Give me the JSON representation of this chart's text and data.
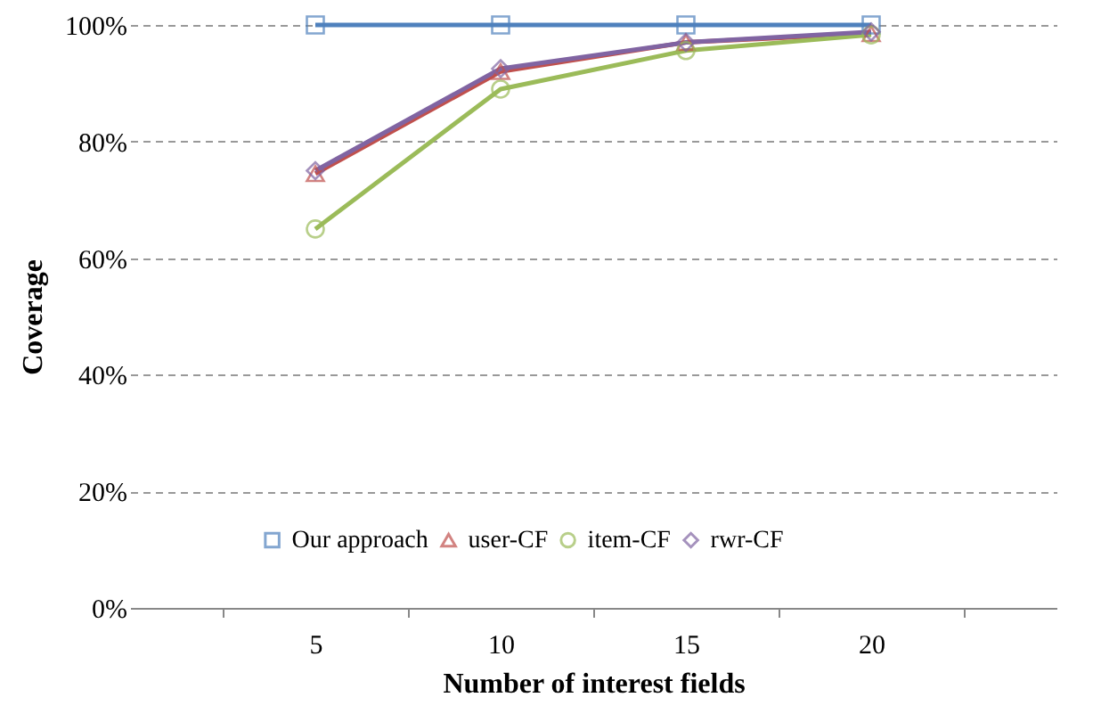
{
  "chart_data": {
    "type": "line",
    "xlabel": "Number of  interest fields",
    "ylabel": "Coverage",
    "categories": [
      "5",
      "10",
      "15",
      "20"
    ],
    "series": [
      {
        "name": "Our approach",
        "color": "#4f81bd",
        "marker": "square",
        "values": [
          100,
          100,
          100,
          100
        ]
      },
      {
        "name": "user-CF",
        "color": "#c0504d",
        "marker": "triangle",
        "values": [
          74.5,
          92,
          97,
          98.5
        ]
      },
      {
        "name": "item-CF",
        "color": "#9bbb59",
        "marker": "circle",
        "values": [
          65,
          89,
          95.6,
          98.3
        ]
      },
      {
        "name": "rwr-CF",
        "color": "#8064a2",
        "marker": "diamond",
        "values": [
          75,
          92.5,
          97,
          98.8
        ]
      }
    ],
    "ylim": [
      0,
      100
    ],
    "yticks": [
      {
        "value": 0,
        "label": "0%"
      },
      {
        "value": 20,
        "label": "20%"
      },
      {
        "value": 40,
        "label": "40%"
      },
      {
        "value": 60,
        "label": "60%"
      },
      {
        "value": 80,
        "label": "80%"
      },
      {
        "value": 100,
        "label": "100%"
      }
    ],
    "grid": "y",
    "legend": "bottom",
    "line_style": "solid"
  }
}
